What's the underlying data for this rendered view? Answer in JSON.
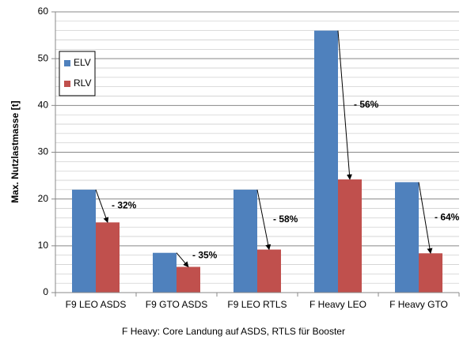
{
  "chart_data": {
    "type": "bar",
    "categories": [
      "F9 LEO ASDS",
      "F9 GTO ASDS",
      "F9 LEO RTLS",
      "F Heavy LEO",
      "F Heavy GTO"
    ],
    "series": [
      {
        "name": "ELV",
        "color": "#4f81bd",
        "values": [
          22,
          8.5,
          22,
          56,
          23.6
        ]
      },
      {
        "name": "RLV",
        "color": "#c0504d",
        "values": [
          15,
          5.5,
          9.2,
          24.2,
          8.4
        ]
      }
    ],
    "annotations": [
      "- 32%",
      "- 35%",
      "- 58%",
      "- 56%",
      "- 64%"
    ],
    "xlabel": "F Heavy: Core Landung auf ASDS, RTLS für Booster",
    "ylabel": "Max. Nutzlastmasse [t]",
    "ylim": [
      0,
      60
    ],
    "yticks": [
      0,
      10,
      20,
      30,
      40,
      50,
      60
    ],
    "yminorticks": [
      2,
      4,
      6,
      8,
      12,
      14,
      16,
      18,
      22,
      24,
      26,
      28,
      32,
      34,
      36,
      38,
      42,
      44,
      46,
      48,
      52,
      54,
      56,
      58
    ],
    "grid": true,
    "legend": "upper left"
  }
}
